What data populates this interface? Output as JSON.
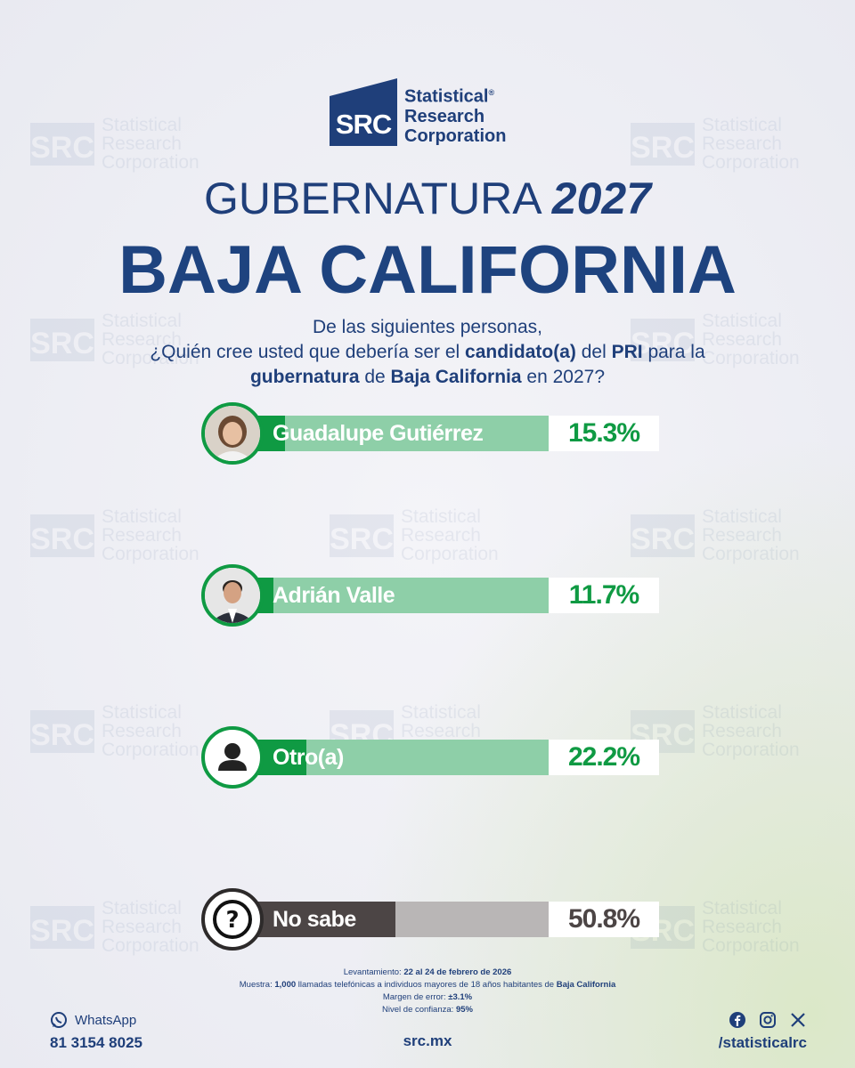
{
  "brand": {
    "abbr": "SRC",
    "name_line1": "Statistical",
    "name_line2": "Research",
    "name_line3": "Corporation",
    "registered": "®",
    "primary_color": "#1f3f7a"
  },
  "header": {
    "title_prefix": "GUBERNATURA",
    "title_year": "2027",
    "state": "BAJA CALIFORNIA"
  },
  "question": {
    "line1": "De las siguientes personas,",
    "line2_a": "¿Quién cree usted que debería ser el ",
    "line2_b": "candidato(a)",
    "line2_c": " del ",
    "line2_d": "PRI",
    "line2_e": " para la",
    "line3_a": "gubernatura",
    "line3_b": " de ",
    "line3_c": "Baja California",
    "line3_d": " en 2027?"
  },
  "chart_data": {
    "type": "bar",
    "categories": [
      "Guadalupe Gutiérrez",
      "Adrián Valle",
      "Otro(a)",
      "No sabe"
    ],
    "values": [
      15.3,
      11.7,
      22.2,
      50.8
    ],
    "value_labels": [
      "15.3%",
      "11.7%",
      "22.2%",
      "50.8%"
    ],
    "icons": [
      "candidate-photo-icon",
      "candidate-photo-icon",
      "person-icon",
      "question-mark-icon"
    ],
    "colors": {
      "fill": [
        "#0f9a43",
        "#0f9a43",
        "#0f9a43",
        "#4c4545"
      ],
      "track": [
        "#8ecfa8",
        "#8ecfa8",
        "#8ecfa8",
        "#b9b6b6"
      ],
      "value_text": [
        "#0f9a43",
        "#0f9a43",
        "#0f9a43",
        "#4c4545"
      ]
    },
    "xlim": [
      0,
      100
    ]
  },
  "methodology": {
    "survey_label": "Levantamiento: ",
    "survey_value": "22 al 24 de febrero de 2026",
    "sample_label": "Muestra: ",
    "sample_value_a": "1,000",
    "sample_text": " llamadas telefónicas a individuos mayores de 18 años habitantes de ",
    "sample_value_b": "Baja California",
    "margin_label": "Margen de error: ",
    "margin_value": "±3.1%",
    "confidence_label": "Nivel de confianza: ",
    "confidence_value": "95%"
  },
  "footer": {
    "whatsapp_label": "WhatsApp",
    "phone": "81 3154 8025",
    "website": "src.mx",
    "social_handle": "/statisticalrc",
    "social_icons": [
      "facebook-icon",
      "instagram-icon",
      "x-icon"
    ]
  }
}
